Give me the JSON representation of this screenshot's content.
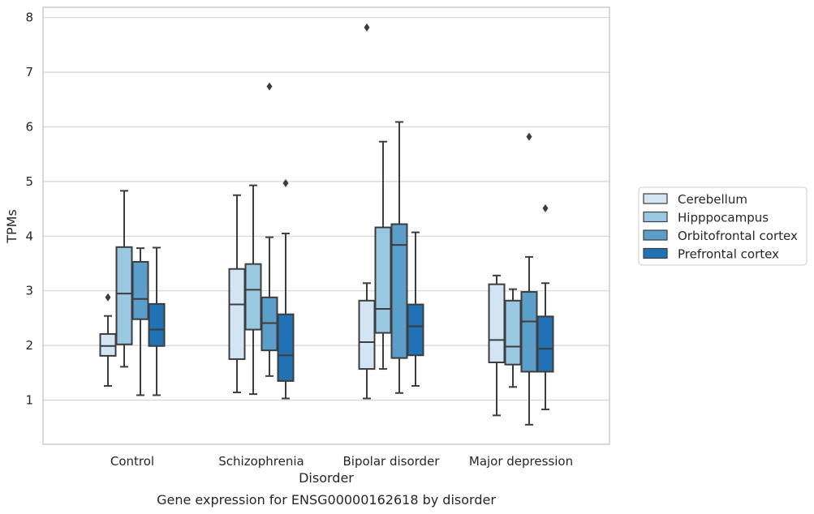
{
  "chart_data": {
    "type": "boxplot",
    "xlabel": "Disorder",
    "ylabel": "TPMs",
    "caption": "Gene expression for ENSG00000162618 by disorder",
    "ylim": [
      0.2,
      8.2
    ],
    "yticks": [
      1,
      2,
      3,
      4,
      5,
      6,
      7,
      8
    ],
    "grid": true,
    "legend_position": "right",
    "categories": [
      "Control",
      "Schizophrenia",
      "Bipolar disorder",
      "Major depression"
    ],
    "series": [
      {
        "name": "Cerebellum",
        "color": "#d3e4f3",
        "boxes": [
          {
            "q1": 1.81,
            "median": 1.99,
            "q3": 2.21,
            "whisker_low": 1.26,
            "whisker_high": 2.54,
            "outliers": [
              2.88
            ]
          },
          {
            "q1": 1.75,
            "median": 2.75,
            "q3": 3.4,
            "whisker_low": 1.14,
            "whisker_high": 4.75,
            "outliers": []
          },
          {
            "q1": 1.57,
            "median": 2.06,
            "q3": 2.82,
            "whisker_low": 1.03,
            "whisker_high": 3.14,
            "outliers": [
              7.82
            ]
          },
          {
            "q1": 1.69,
            "median": 2.1,
            "q3": 3.12,
            "whisker_low": 0.72,
            "whisker_high": 3.28,
            "outliers": []
          }
        ]
      },
      {
        "name": "Hipppocampus",
        "color": "#9ac8e0",
        "boxes": [
          {
            "q1": 2.02,
            "median": 2.95,
            "q3": 3.8,
            "whisker_low": 1.61,
            "whisker_high": 4.83,
            "outliers": []
          },
          {
            "q1": 2.29,
            "median": 3.02,
            "q3": 3.49,
            "whisker_low": 1.11,
            "whisker_high": 4.93,
            "outliers": []
          },
          {
            "q1": 2.23,
            "median": 2.67,
            "q3": 4.16,
            "whisker_low": 1.57,
            "whisker_high": 5.73,
            "outliers": []
          },
          {
            "q1": 1.65,
            "median": 1.98,
            "q3": 2.82,
            "whisker_low": 1.24,
            "whisker_high": 3.03,
            "outliers": []
          }
        ]
      },
      {
        "name": "Orbitofrontal cortex",
        "color": "#5a9ec9",
        "boxes": [
          {
            "q1": 2.48,
            "median": 2.85,
            "q3": 3.53,
            "whisker_low": 1.09,
            "whisker_high": 3.78,
            "outliers": []
          },
          {
            "q1": 1.91,
            "median": 2.41,
            "q3": 2.88,
            "whisker_low": 1.44,
            "whisker_high": 3.98,
            "outliers": [
              6.74
            ]
          },
          {
            "q1": 1.77,
            "median": 3.84,
            "q3": 4.22,
            "whisker_low": 1.13,
            "whisker_high": 6.09,
            "outliers": []
          },
          {
            "q1": 1.52,
            "median": 2.44,
            "q3": 2.98,
            "whisker_low": 0.55,
            "whisker_high": 3.62,
            "outliers": [
              5.82
            ]
          }
        ]
      },
      {
        "name": "Prefrontal cortex",
        "color": "#2171b5",
        "boxes": [
          {
            "q1": 1.99,
            "median": 2.29,
            "q3": 2.76,
            "whisker_low": 1.09,
            "whisker_high": 3.79,
            "outliers": []
          },
          {
            "q1": 1.35,
            "median": 1.82,
            "q3": 2.57,
            "whisker_low": 1.03,
            "whisker_high": 4.05,
            "outliers": [
              4.97
            ]
          },
          {
            "q1": 1.82,
            "median": 2.35,
            "q3": 2.75,
            "whisker_low": 1.26,
            "whisker_high": 4.07,
            "outliers": []
          },
          {
            "q1": 1.52,
            "median": 1.94,
            "q3": 2.53,
            "whisker_low": 0.83,
            "whisker_high": 3.14,
            "outliers": [
              4.51
            ]
          }
        ]
      }
    ]
  }
}
